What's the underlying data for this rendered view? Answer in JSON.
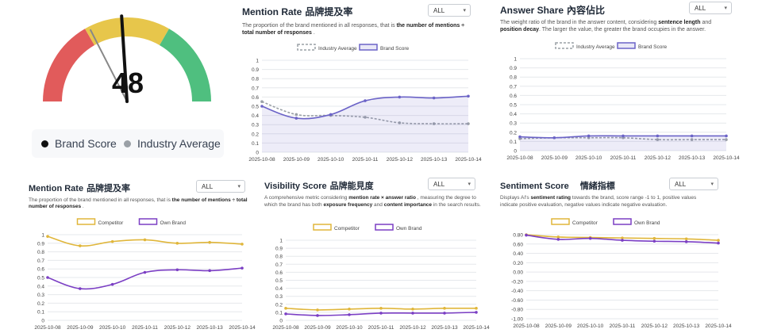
{
  "gauge": {
    "value": "48",
    "brand_score": 48,
    "industry_average": 35,
    "legend_brand": "Brand Score",
    "legend_industry": "Industry Average",
    "colors": {
      "low": "#e15b5b",
      "mid": "#e7c64b",
      "high": "#4fbf7f",
      "needle": "#111111",
      "industry_needle": "#888888"
    }
  },
  "panels": {
    "mention_top": {
      "title": "Mention Rate",
      "title_zh": "品牌提及率",
      "select": "ALL",
      "desc_pre": "The proportion of the brand mentioned in all responses, that is ",
      "desc_bold": "the number of mentions ÷ total number of responses",
      "desc_post": " ."
    },
    "answer_share": {
      "title": "Answer Share",
      "title_zh": "內容佔比",
      "select": "ALL",
      "desc_a": "The weight ratio of the brand in the answer content, considering ",
      "desc_b": "sentence length",
      "desc_c": " and ",
      "desc_d": "position decay",
      "desc_e": ". The larger the value, the greater the brand occupies in the answer."
    },
    "mention_bottom": {
      "title": "Mention Rate",
      "title_zh": "品牌提及率",
      "select": "ALL",
      "desc_pre": "The proportion of the brand mentioned in all responses, that is ",
      "desc_bold": "the number of mentions ÷ total number of responses",
      "desc_post": " ."
    },
    "visibility": {
      "title": "Visibility Score",
      "title_zh": "品牌能見度",
      "select": "ALL",
      "desc_a": "A comprehensive metric considering ",
      "desc_b": "mention rate × answer ratio",
      "desc_c": " , measuring the degree to which the brand has both ",
      "desc_d": "exposure frequency",
      "desc_e": " and ",
      "desc_f": "content importance",
      "desc_g": " in the search results."
    },
    "sentiment": {
      "title": "Sentiment Score",
      "title_zh": "情緒指標",
      "select": "ALL",
      "desc_a": "Displays AI's ",
      "desc_b": "sentiment rating",
      "desc_c": " towards the brand, score range -1 to 1, positive values indicate positive evaluation, negative values indicate negative evaluation."
    }
  },
  "chart_data": [
    {
      "id": "mention_top",
      "type": "line",
      "x": [
        "2025-10-08",
        "2025-10-09",
        "2025-10-10",
        "2025-10-11",
        "2025-10-12",
        "2025-10-13",
        "2025-10-14"
      ],
      "ylim": [
        0,
        1
      ],
      "yticks": [
        "0",
        "0.1",
        "0.2",
        "0.3",
        "0.4",
        "0.5",
        "0.6",
        "0.7",
        "0.8",
        "0.9",
        "1"
      ],
      "legend": "top",
      "series": [
        {
          "name": "Industry Average",
          "values": [
            0.55,
            0.41,
            0.4,
            0.38,
            0.32,
            0.31,
            0.31
          ],
          "color": "#9aa0a6",
          "dashed": true,
          "fill": false
        },
        {
          "name": "Brand Score",
          "values": [
            0.5,
            0.37,
            0.41,
            0.56,
            0.6,
            0.59,
            0.61
          ],
          "color": "#6b63c7",
          "dashed": false,
          "fill": true
        }
      ]
    },
    {
      "id": "answer_share",
      "type": "line",
      "x": [
        "2025-10-08",
        "2025-10-09",
        "2025-10-10",
        "2025-10-11",
        "2025-10-12",
        "2025-10-13",
        "2025-10-14"
      ],
      "ylim": [
        0,
        1
      ],
      "yticks": [
        "0",
        "0.1",
        "0.2",
        "0.3",
        "0.4",
        "0.5",
        "0.6",
        "0.7",
        "0.8",
        "0.9",
        "1"
      ],
      "legend": "top",
      "series": [
        {
          "name": "Industry Average",
          "values": [
            0.13,
            0.14,
            0.14,
            0.14,
            0.12,
            0.12,
            0.12
          ],
          "color": "#9aa0a6",
          "dashed": true,
          "fill": false
        },
        {
          "name": "Brand Score",
          "values": [
            0.15,
            0.14,
            0.16,
            0.16,
            0.16,
            0.16,
            0.16
          ],
          "color": "#6b63c7",
          "dashed": false,
          "fill": true
        }
      ]
    },
    {
      "id": "mention_bottom",
      "type": "line",
      "x": [
        "2025-10-08",
        "2025-10-09",
        "2025-10-10",
        "2025-10-11",
        "2025-10-12",
        "2025-10-13",
        "2025-10-14"
      ],
      "ylim": [
        0,
        1
      ],
      "yticks": [
        "0",
        "0.1",
        "0.2",
        "0.3",
        "0.4",
        "0.5",
        "0.6",
        "0.7",
        "0.8",
        "0.9",
        "1"
      ],
      "legend": "top",
      "series": [
        {
          "name": "Competitor",
          "values": [
            0.98,
            0.87,
            0.92,
            0.94,
            0.9,
            0.91,
            0.89
          ],
          "color": "#e0b63a",
          "dashed": false,
          "fill": false
        },
        {
          "name": "Own Brand",
          "values": [
            0.5,
            0.37,
            0.42,
            0.56,
            0.59,
            0.58,
            0.61
          ],
          "color": "#7b3fc4",
          "dashed": false,
          "fill": false
        }
      ]
    },
    {
      "id": "visibility",
      "type": "line",
      "x": [
        "2025-10-08",
        "2025-10-09",
        "2025-10-10",
        "2025-10-11",
        "2025-10-12",
        "2025-10-13",
        "2025-10-14"
      ],
      "ylim": [
        0,
        1
      ],
      "yticks": [
        "0",
        "0.1",
        "0.2",
        "0.3",
        "0.4",
        "0.5",
        "0.6",
        "0.7",
        "0.8",
        "0.9",
        "1"
      ],
      "legend": "top",
      "series": [
        {
          "name": "Competitor",
          "values": [
            0.15,
            0.13,
            0.14,
            0.15,
            0.14,
            0.15,
            0.15
          ],
          "color": "#e0b63a",
          "dashed": false,
          "fill": false
        },
        {
          "name": "Own Brand",
          "values": [
            0.08,
            0.06,
            0.07,
            0.09,
            0.09,
            0.09,
            0.1
          ],
          "color": "#7b3fc4",
          "dashed": false,
          "fill": false
        }
      ]
    },
    {
      "id": "sentiment",
      "type": "line",
      "x": [
        "2025-10-08",
        "2025-10-09",
        "2025-10-10",
        "2025-10-11",
        "2025-10-12",
        "2025-10-13",
        "2025-10-14"
      ],
      "ylim": [
        -1,
        0.8
      ],
      "yticks": [
        "-1.00",
        "-0.80",
        "-0.60",
        "-0.40",
        "-0.20",
        "0.00",
        "0.20",
        "0.40",
        "0.60",
        "0.80"
      ],
      "legend": "top",
      "series": [
        {
          "name": "Competitor",
          "values": [
            0.8,
            0.75,
            0.74,
            0.73,
            0.72,
            0.71,
            0.68
          ],
          "color": "#e0b63a",
          "dashed": false,
          "fill": false
        },
        {
          "name": "Own Brand",
          "values": [
            0.79,
            0.7,
            0.72,
            0.68,
            0.66,
            0.65,
            0.62
          ],
          "color": "#7b3fc4",
          "dashed": false,
          "fill": false
        }
      ]
    }
  ]
}
